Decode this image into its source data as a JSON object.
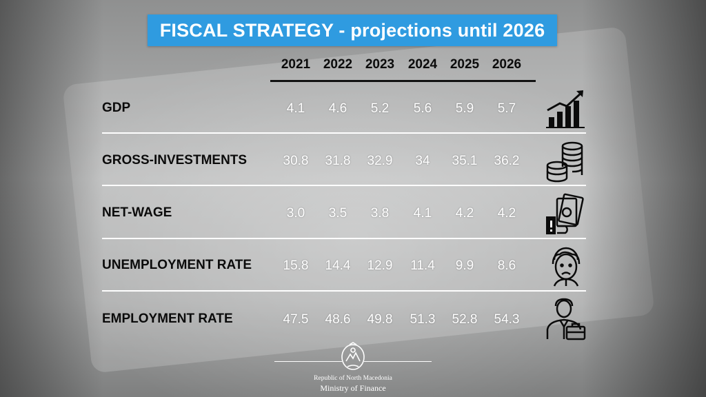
{
  "title": "FISCAL STRATEGY - projections until 2026",
  "years": [
    "2021",
    "2022",
    "2023",
    "2024",
    "2025",
    "2026"
  ],
  "rows": [
    {
      "label": "GDP",
      "icon": "bar-chart-growth-icon",
      "values": [
        "4.1",
        "4.6",
        "5.2",
        "5.6",
        "5.9",
        "5.7"
      ]
    },
    {
      "label": "GROSS-INVESTMENTS",
      "icon": "coin-stack-icon",
      "values": [
        "30.8",
        "31.8",
        "32.9",
        "34",
        "35.1",
        "36.2"
      ]
    },
    {
      "label": "NET-WAGE",
      "icon": "hand-holding-money-icon",
      "values": [
        "3.0",
        "3.5",
        "3.8",
        "4.1",
        "4.2",
        "4.2"
      ]
    },
    {
      "label": "UNEMPLOYMENT RATE",
      "icon": "sad-face-icon",
      "values": [
        "15.8",
        "14.4",
        "12.9",
        "11.4",
        "9.9",
        "8.6"
      ]
    },
    {
      "label": "EMPLOYMENT RATE",
      "icon": "businessman-briefcase-icon",
      "values": [
        "47.5",
        "48.6",
        "49.8",
        "51.3",
        "52.8",
        "54.3"
      ]
    }
  ],
  "footer": {
    "country": "Republic of North Macedonia",
    "ministry": "Ministry of Finance",
    "emblem": "coat-of-arms-icon"
  },
  "colors": {
    "banner": "#2f9be0",
    "label_text": "#0b0b0b",
    "value_text": "#ffffff"
  }
}
